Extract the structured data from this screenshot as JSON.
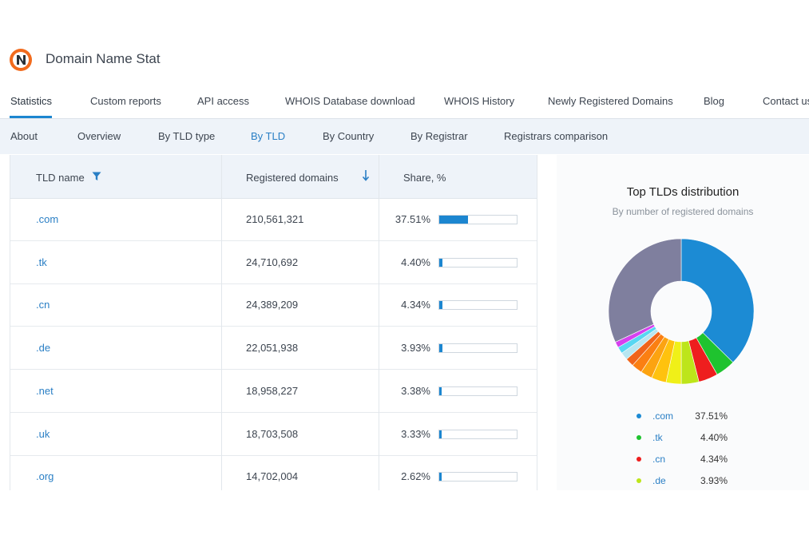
{
  "site": {
    "title": "Domain Name Stat"
  },
  "main_nav": [
    {
      "label": "Statistics",
      "active": true
    },
    {
      "label": "Custom reports"
    },
    {
      "label": "API access"
    },
    {
      "label": "WHOIS Database download"
    },
    {
      "label": "WHOIS History"
    },
    {
      "label": "Newly Registered Domains"
    },
    {
      "label": "Blog"
    },
    {
      "label": "Contact us"
    }
  ],
  "sub_nav": [
    {
      "label": "About"
    },
    {
      "label": "Overview"
    },
    {
      "label": "By TLD type"
    },
    {
      "label": "By TLD",
      "active": true
    },
    {
      "label": "By Country"
    },
    {
      "label": "By Registrar"
    },
    {
      "label": "Registrars comparison"
    }
  ],
  "table": {
    "headers": {
      "tld": "TLD name",
      "registered": "Registered domains",
      "share": "Share, %"
    },
    "icons": {
      "filter": "filter-icon",
      "sort": "sort-down-arrow-icon"
    },
    "rows": [
      {
        "tld": ".com",
        "registered": "210,561,321",
        "share": "37.51%",
        "share_value": 37.51
      },
      {
        "tld": ".tk",
        "registered": "24,710,692",
        "share": "4.40%",
        "share_value": 4.4
      },
      {
        "tld": ".cn",
        "registered": "24,389,209",
        "share": "4.34%",
        "share_value": 4.34
      },
      {
        "tld": ".de",
        "registered": "22,051,938",
        "share": "3.93%",
        "share_value": 3.93
      },
      {
        "tld": ".net",
        "registered": "18,958,227",
        "share": "3.38%",
        "share_value": 3.38
      },
      {
        "tld": ".uk",
        "registered": "18,703,508",
        "share": "3.33%",
        "share_value": 3.33
      },
      {
        "tld": ".org",
        "registered": "14,702,004",
        "share": "2.62%",
        "share_value": 2.62
      }
    ]
  },
  "chart_data": {
    "type": "pie",
    "title": "Top TLDs distribution",
    "subtitle": "By number of registered domains",
    "slices": [
      {
        "value": 37.51,
        "color": "#1c8bd4"
      },
      {
        "value": 4.4,
        "color": "#1fc32f"
      },
      {
        "value": 4.34,
        "color": "#ee1e1e"
      },
      {
        "value": 3.93,
        "color": "#bde51a"
      },
      {
        "value": 3.38,
        "color": "#f0f018"
      },
      {
        "value": 3.33,
        "color": "#ffc20e"
      },
      {
        "value": 2.62,
        "color": "#fca311"
      },
      {
        "value": 2.4,
        "color": "#fb7f12"
      },
      {
        "value": 1.9,
        "color": "#f0641a"
      },
      {
        "value": 1.7,
        "color": "#b8e6f0"
      },
      {
        "value": 1.5,
        "color": "#57d7f2"
      },
      {
        "value": 1.3,
        "color": "#d640ef"
      },
      {
        "value": 32.06,
        "color": "#7f7f9e"
      }
    ],
    "legend": [
      {
        "name": ".com",
        "value": "37.51%",
        "color": "#1c8bd4"
      },
      {
        "name": ".tk",
        "value": "4.40%",
        "color": "#1fc32f"
      },
      {
        "name": ".cn",
        "value": "4.34%",
        "color": "#ee1e1e"
      },
      {
        "name": ".de",
        "value": "3.93%",
        "color": "#bde51a"
      }
    ]
  }
}
